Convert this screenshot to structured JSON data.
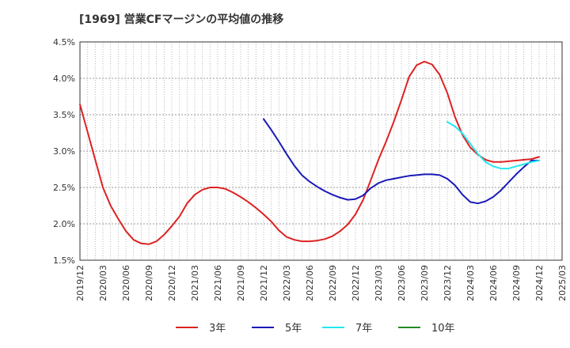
{
  "chart_data": {
    "type": "line",
    "title": "[1969]  営業CFマージンの平均値の推移",
    "xlabel": "",
    "ylabel": "",
    "ylim": [
      1.5,
      4.5
    ],
    "yticks": [
      "1.5%",
      "2.0%",
      "2.5%",
      "3.0%",
      "3.5%",
      "4.0%",
      "4.5%"
    ],
    "xticks": [
      "2019/12",
      "2020/03",
      "2020/06",
      "2020/09",
      "2020/12",
      "2021/03",
      "2021/06",
      "2021/09",
      "2021/12",
      "2022/03",
      "2022/06",
      "2022/09",
      "2022/12",
      "2023/03",
      "2023/06",
      "2023/09",
      "2023/12",
      "2024/03",
      "2024/06",
      "2024/09",
      "2024/12",
      "2025/03"
    ],
    "grid": true,
    "legend_position": "bottom",
    "series": [
      {
        "name": "3年",
        "color": "#dd2222",
        "x": [
          "2019/12",
          "2020/01",
          "2020/02",
          "2020/03",
          "2020/04",
          "2020/05",
          "2020/06",
          "2020/07",
          "2020/08",
          "2020/09",
          "2020/10",
          "2020/11",
          "2020/12",
          "2021/01",
          "2021/02",
          "2021/03",
          "2021/04",
          "2021/05",
          "2021/06",
          "2021/07",
          "2021/08",
          "2021/09",
          "2021/10",
          "2021/11",
          "2021/12",
          "2022/01",
          "2022/02",
          "2022/03",
          "2022/04",
          "2022/05",
          "2022/06",
          "2022/07",
          "2022/08",
          "2022/09",
          "2022/10",
          "2022/11",
          "2022/12",
          "2023/01",
          "2023/02",
          "2023/03",
          "2023/04",
          "2023/05",
          "2023/06",
          "2023/07",
          "2023/08",
          "2023/09",
          "2023/10",
          "2023/11",
          "2023/12",
          "2024/01",
          "2024/02",
          "2024/03",
          "2024/04",
          "2024/05",
          "2024/06",
          "2024/07",
          "2024/08",
          "2024/09",
          "2024/10",
          "2024/11",
          "2024/12"
        ],
        "values": [
          3.64,
          3.26,
          2.88,
          2.5,
          2.25,
          2.07,
          1.9,
          1.78,
          1.73,
          1.72,
          1.76,
          1.85,
          1.97,
          2.1,
          2.28,
          2.4,
          2.47,
          2.5,
          2.5,
          2.48,
          2.43,
          2.37,
          2.3,
          2.22,
          2.13,
          2.03,
          1.91,
          1.82,
          1.78,
          1.76,
          1.76,
          1.77,
          1.79,
          1.83,
          1.9,
          1.99,
          2.13,
          2.33,
          2.6,
          2.88,
          3.13,
          3.4,
          3.7,
          4.02,
          4.18,
          4.23,
          4.19,
          4.05,
          3.8,
          3.47,
          3.22,
          3.05,
          2.95,
          2.88,
          2.85,
          2.85,
          2.86,
          2.87,
          2.88,
          2.89,
          2.92
        ]
      },
      {
        "name": "5年",
        "color": "#1a1ab8",
        "x": [
          "2021/12",
          "2022/01",
          "2022/02",
          "2022/03",
          "2022/04",
          "2022/05",
          "2022/06",
          "2022/07",
          "2022/08",
          "2022/09",
          "2022/10",
          "2022/11",
          "2022/12",
          "2023/01",
          "2023/02",
          "2023/03",
          "2023/04",
          "2023/05",
          "2023/06",
          "2023/07",
          "2023/08",
          "2023/09",
          "2023/10",
          "2023/11",
          "2023/12",
          "2024/01",
          "2024/02",
          "2024/03",
          "2024/04",
          "2024/05",
          "2024/06",
          "2024/07",
          "2024/08",
          "2024/09",
          "2024/10",
          "2024/11",
          "2024/12"
        ],
        "values": [
          3.44,
          3.29,
          3.13,
          2.96,
          2.8,
          2.67,
          2.58,
          2.51,
          2.45,
          2.4,
          2.36,
          2.33,
          2.34,
          2.39,
          2.49,
          2.56,
          2.6,
          2.62,
          2.64,
          2.66,
          2.67,
          2.68,
          2.68,
          2.67,
          2.62,
          2.53,
          2.4,
          2.3,
          2.28,
          2.31,
          2.37,
          2.46,
          2.57,
          2.68,
          2.78,
          2.87,
          2.87
        ]
      },
      {
        "name": "7年",
        "color": "#22e8ee",
        "x": [
          "2023/12",
          "2024/01",
          "2024/02",
          "2024/03",
          "2024/04",
          "2024/05",
          "2024/06",
          "2024/07",
          "2024/08",
          "2024/09",
          "2024/10",
          "2024/11",
          "2024/12"
        ],
        "values": [
          3.4,
          3.34,
          3.24,
          3.1,
          2.96,
          2.85,
          2.79,
          2.76,
          2.76,
          2.79,
          2.82,
          2.85,
          2.87
        ]
      },
      {
        "name": "10年",
        "color": "#228b22",
        "x": [],
        "values": []
      }
    ]
  }
}
